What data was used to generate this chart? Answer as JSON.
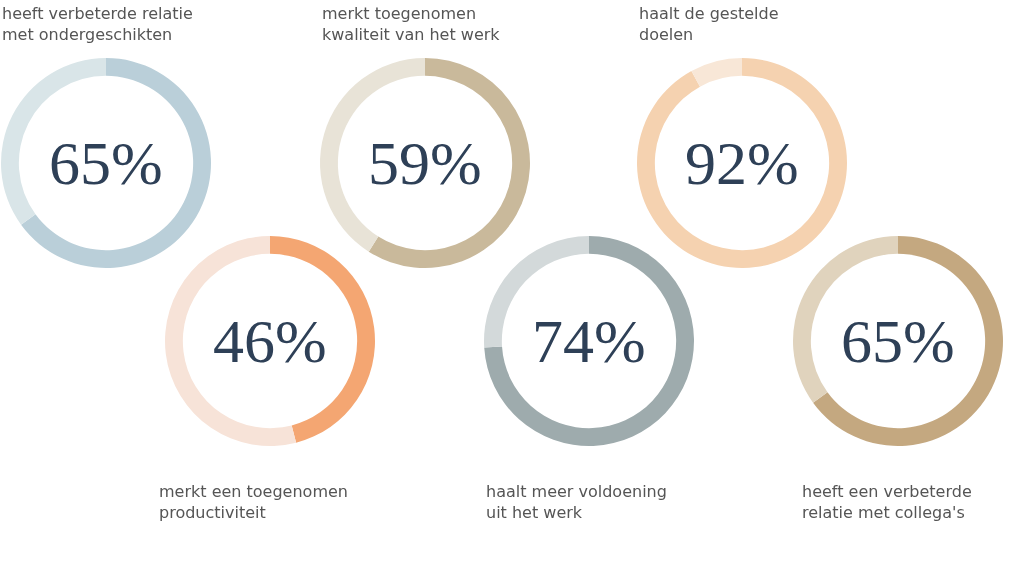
{
  "chart_data": [
    {
      "type": "donut",
      "title": "heeft verbeterde relatie\nmet ondergeschikten",
      "categories": [
        null,
        null
      ],
      "values": [
        65,
        35
      ],
      "colors": [
        "#bacfd9",
        "#d9e5e8"
      ],
      "annotations": [
        "65%"
      ]
    },
    {
      "type": "donut",
      "title": "merkt toegenomen\nkwaliteit van het werk",
      "categories": [
        null,
        null
      ],
      "values": [
        59,
        41
      ],
      "colors": [
        "#c9b99b",
        "#e8e3d7"
      ],
      "annotations": [
        "59%"
      ]
    },
    {
      "type": "donut",
      "title": "haalt de gestelde\ndoelen",
      "categories": [
        null,
        null
      ],
      "values": [
        92,
        8
      ],
      "colors": [
        "#f5d2b0",
        "#f8e7d7"
      ],
      "annotations": [
        "92%"
      ]
    },
    {
      "type": "donut",
      "title": "merkt een toegenomen\nproductiviteit",
      "categories": [
        null,
        null
      ],
      "values": [
        46,
        54
      ],
      "colors": [
        "#f4a672",
        "#f7e3d8"
      ],
      "annotations": [
        "46%"
      ]
    },
    {
      "type": "donut",
      "title": "haalt meer voldoening\nuit het werk",
      "categories": [
        null,
        null
      ],
      "values": [
        74,
        26
      ],
      "colors": [
        "#9eabad",
        "#d3d9da"
      ],
      "annotations": [
        "74%"
      ]
    },
    {
      "type": "donut",
      "title": "heeft een verbeterde\nrelatie met collega's",
      "categories": [
        null,
        null
      ],
      "values": [
        65,
        35
      ],
      "colors": [
        "#c4a880",
        "#e0d3bd"
      ],
      "annotations": [
        "65%"
      ]
    }
  ]
}
